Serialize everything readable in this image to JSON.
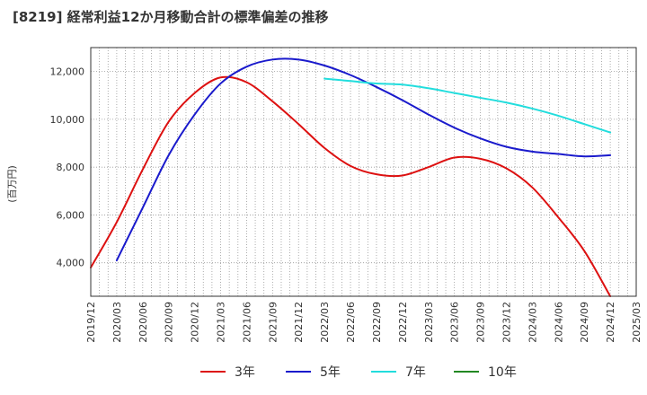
{
  "chart_data": {
    "type": "line",
    "title": "[8219]  経常利益12か月移動合計の標準偏差の推移",
    "ylabel": "(百万円)",
    "xlabel": "",
    "ylim": [
      2600,
      13000
    ],
    "yticks": [
      4000,
      6000,
      8000,
      10000,
      12000
    ],
    "ytick_labels": [
      "4,000",
      "6,000",
      "8,000",
      "10,000",
      "12,000"
    ],
    "xlim": [
      "2019-12",
      "2025-03"
    ],
    "xtick_labels": [
      "2019/12",
      "2020/03",
      "2020/06",
      "2020/09",
      "2020/12",
      "2021/03",
      "2021/06",
      "2021/09",
      "2021/12",
      "2022/03",
      "2022/06",
      "2022/09",
      "2022/12",
      "2023/03",
      "2023/06",
      "2023/09",
      "2023/12",
      "2024/03",
      "2024/06",
      "2024/09",
      "2024/12",
      "2025/03"
    ],
    "grid": true,
    "legend_position": "bottom",
    "series": [
      {
        "name": "3年",
        "color": "#dd1111",
        "x": [
          "2019-12",
          "2020-03",
          "2020-06",
          "2020-09",
          "2020-12",
          "2021-03",
          "2021-06",
          "2021-09",
          "2021-12",
          "2022-03",
          "2022-06",
          "2022-09",
          "2022-12",
          "2023-03",
          "2023-06",
          "2023-09",
          "2023-12",
          "2024-03",
          "2024-06",
          "2024-09",
          "2024-12"
        ],
        "values": [
          3800,
          5700,
          7900,
          9900,
          11100,
          11750,
          11550,
          10750,
          9800,
          8800,
          8050,
          7700,
          7650,
          8000,
          8400,
          8350,
          7950,
          7150,
          5900,
          4500,
          2600
        ]
      },
      {
        "name": "5年",
        "color": "#1a1acc",
        "x": [
          "2020-03",
          "2020-06",
          "2020-09",
          "2020-12",
          "2021-03",
          "2021-06",
          "2021-09",
          "2021-12",
          "2022-03",
          "2022-06",
          "2022-09",
          "2022-12",
          "2023-03",
          "2023-06",
          "2023-09",
          "2023-12",
          "2024-03",
          "2024-06",
          "2024-09",
          "2024-12"
        ],
        "values": [
          4100,
          6300,
          8500,
          10200,
          11500,
          12200,
          12500,
          12500,
          12250,
          11850,
          11350,
          10800,
          10200,
          9650,
          9200,
          8850,
          8650,
          8550,
          8450,
          8500
        ]
      },
      {
        "name": "7年",
        "color": "#22dddd",
        "x": [
          "2022-03",
          "2022-06",
          "2022-09",
          "2022-12",
          "2023-03",
          "2023-06",
          "2023-09",
          "2023-12",
          "2024-03",
          "2024-06",
          "2024-09",
          "2024-12"
        ],
        "values": [
          11700,
          11600,
          11500,
          11450,
          11300,
          11100,
          10900,
          10700,
          10450,
          10150,
          9800,
          9450
        ]
      },
      {
        "name": "10年",
        "color": "#228822",
        "x": [],
        "values": []
      }
    ]
  }
}
